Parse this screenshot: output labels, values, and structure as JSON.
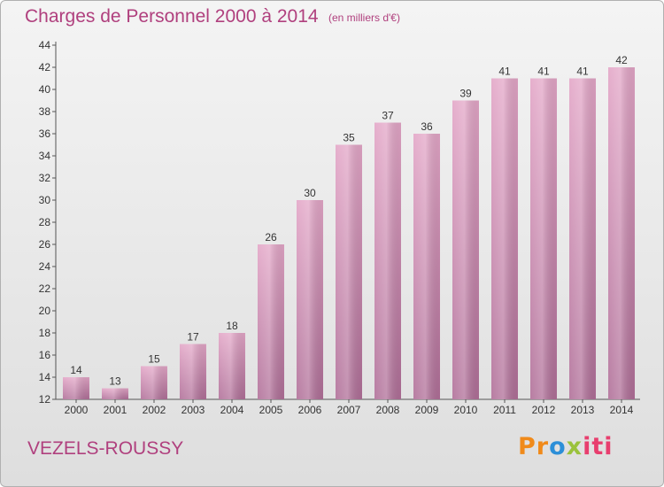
{
  "header": {
    "title": "Charges de Personnel 2000 à 2014",
    "subtitle": "(en milliers d'€)"
  },
  "footer": {
    "town": "VEZELS-ROUSSY",
    "logo_text": "Proxiti",
    "logo_parts": [
      "Pr",
      "o",
      "x",
      "iti"
    ]
  },
  "colors": {
    "title": "#b0407e",
    "bar_top": "#e3a6c7",
    "bar_bottom": "#b06f98",
    "text": "#333333"
  },
  "chart_data": {
    "type": "bar",
    "categories": [
      "2000",
      "2001",
      "2002",
      "2003",
      "2004",
      "2005",
      "2006",
      "2007",
      "2008",
      "2009",
      "2010",
      "2011",
      "2012",
      "2013",
      "2014"
    ],
    "values": [
      14,
      13,
      15,
      17,
      18,
      26,
      30,
      35,
      37,
      36,
      39,
      41,
      41,
      41,
      42
    ],
    "title": "Charges de Personnel 2000 à 2014",
    "xlabel": "",
    "ylabel": "",
    "ylim": [
      12,
      44
    ],
    "yticks": [
      12,
      14,
      16,
      18,
      20,
      22,
      24,
      26,
      28,
      30,
      32,
      34,
      36,
      38,
      40,
      42,
      44
    ],
    "grid": false,
    "data_labels": true
  }
}
